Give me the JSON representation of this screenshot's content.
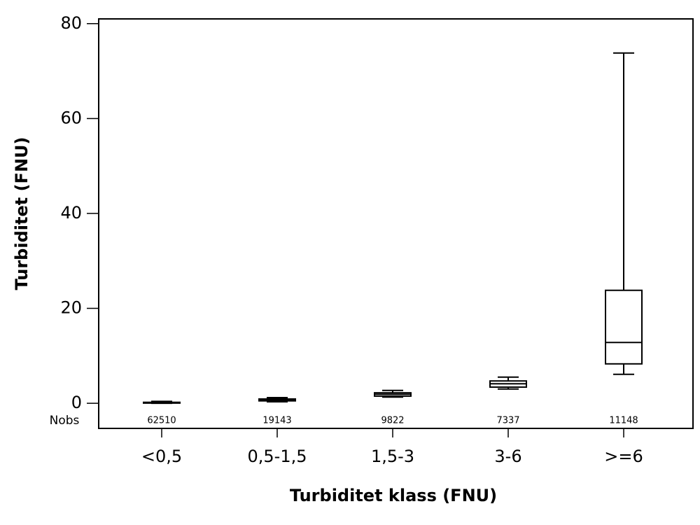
{
  "chart_data": {
    "type": "box",
    "xlabel": "Turbiditet klass (FNU)",
    "ylabel": "Turbiditet (FNU)",
    "categories": [
      "<0,5",
      "0,5-1,5",
      "1,5-3",
      "3-6",
      ">=6"
    ],
    "series": [
      {
        "color": "#000000",
        "whislo": [
          0,
          0.3,
          1.3,
          3.0,
          6.1
        ],
        "q1": [
          0.03,
          0.5,
          1.5,
          3.4,
          8.3
        ],
        "med": [
          0.1,
          0.7,
          1.9,
          4.1,
          12.8
        ],
        "q3": [
          0.2,
          0.9,
          2.2,
          4.7,
          23.8
        ],
        "whishi": [
          0.4,
          1.2,
          2.7,
          5.5,
          73.8
        ]
      }
    ],
    "nobs_label": "Nobs",
    "nobs": [
      62510,
      19143,
      9822,
      7337,
      11148
    ],
    "ylim": [
      -5.3,
      81
    ],
    "yticks": [
      0,
      20,
      40,
      60,
      80
    ]
  }
}
